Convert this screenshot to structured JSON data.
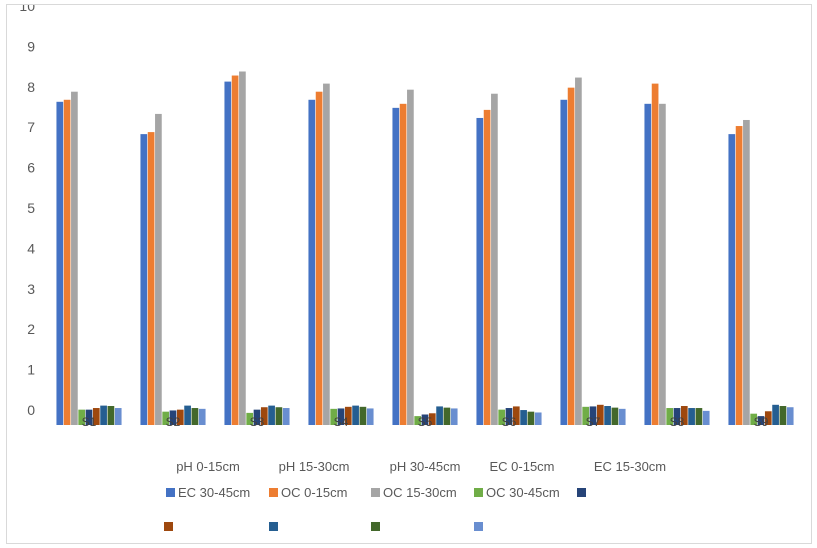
{
  "chart_data": {
    "type": "bar",
    "title": "",
    "xlabel": "",
    "ylabel": "",
    "ylim": [
      0,
      10
    ],
    "y_ticks": [
      "0",
      "1",
      "2",
      "3",
      "4",
      "5",
      "6",
      "7",
      "8",
      "9",
      "10"
    ],
    "grid": false,
    "categories": [
      "S1",
      "S2",
      "S3",
      "S4",
      "S5",
      "S6",
      "S7",
      "S8",
      "S9"
    ],
    "series": [
      {
        "name": "EC 30-45cm",
        "color": "#4472C4",
        "values": [
          8.0,
          7.2,
          8.5,
          8.05,
          7.85,
          7.6,
          8.05,
          7.95,
          7.2
        ]
      },
      {
        "name": "OC 0-15cm",
        "color": "#ED7D31",
        "values": [
          8.05,
          7.25,
          8.65,
          8.25,
          7.95,
          7.8,
          8.35,
          8.45,
          7.4
        ]
      },
      {
        "name": "OC 15-30cm",
        "color": "#A5A5A5",
        "values": [
          8.25,
          7.7,
          8.75,
          8.45,
          8.3,
          8.2,
          8.6,
          7.95,
          7.55
        ]
      },
      {
        "name": "OC 30-45cm",
        "color": "#70AD47",
        "values": [
          0.38,
          0.33,
          0.3,
          0.4,
          0.22,
          0.38,
          0.45,
          0.42,
          0.28
        ]
      },
      {
        "name": "",
        "color": "#264478",
        "values": [
          0.38,
          0.36,
          0.38,
          0.41,
          0.26,
          0.42,
          0.46,
          0.42,
          0.22
        ]
      },
      {
        "name": "",
        "color": "#9E480E",
        "values": [
          0.42,
          0.38,
          0.44,
          0.45,
          0.29,
          0.46,
          0.5,
          0.47,
          0.34
        ]
      },
      {
        "name": "",
        "color": "#255E91",
        "values": [
          0.48,
          0.48,
          0.48,
          0.48,
          0.46,
          0.37,
          0.47,
          0.42,
          0.5
        ]
      },
      {
        "name": "",
        "color": "#43682B",
        "values": [
          0.47,
          0.42,
          0.44,
          0.45,
          0.43,
          0.33,
          0.43,
          0.42,
          0.47
        ]
      },
      {
        "name": "",
        "color": "#698ED0",
        "values": [
          0.42,
          0.4,
          0.42,
          0.41,
          0.41,
          0.31,
          0.4,
          0.35,
          0.44
        ]
      }
    ],
    "x_axis_labels": [
      "pH 0-15cm",
      "pH 15-30cm",
      "pH 30-45cm",
      "EC 0-15cm",
      "EC 15-30cm"
    ],
    "legend_position": "bottom"
  }
}
